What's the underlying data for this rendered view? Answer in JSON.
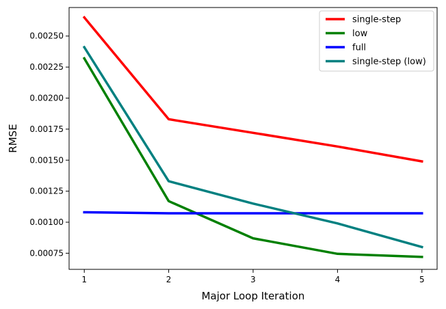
{
  "chart_data": {
    "type": "line",
    "title": "",
    "xlabel": "Major Loop Iteration",
    "ylabel": "RMSE",
    "x": [
      1,
      2,
      3,
      4,
      5
    ],
    "x_ticks": [
      "1",
      "2",
      "3",
      "4",
      "5"
    ],
    "y_ticks": [
      "0.00075",
      "0.00100",
      "0.00125",
      "0.00150",
      "0.00175",
      "0.00200",
      "0.00225",
      "0.00250"
    ],
    "xlim": [
      0.82,
      5.18
    ],
    "ylim": [
      0.00062,
      0.00273
    ],
    "grid": false,
    "legend_position": "top-right",
    "series": [
      {
        "name": "single-step",
        "color": "#ff0000",
        "values": [
          0.00265,
          0.00183,
          0.00172,
          0.00161,
          0.00149
        ]
      },
      {
        "name": "low",
        "color": "#008000",
        "values": [
          0.00232,
          0.00117,
          0.00087,
          0.000745,
          0.00072
        ]
      },
      {
        "name": "full",
        "color": "#0000ff",
        "values": [
          0.00108,
          0.001072,
          0.001072,
          0.001072,
          0.001072
        ]
      },
      {
        "name": "single-step (low)",
        "color": "#008080",
        "values": [
          0.00241,
          0.00133,
          0.00115,
          0.00099,
          0.0008
        ]
      }
    ]
  }
}
